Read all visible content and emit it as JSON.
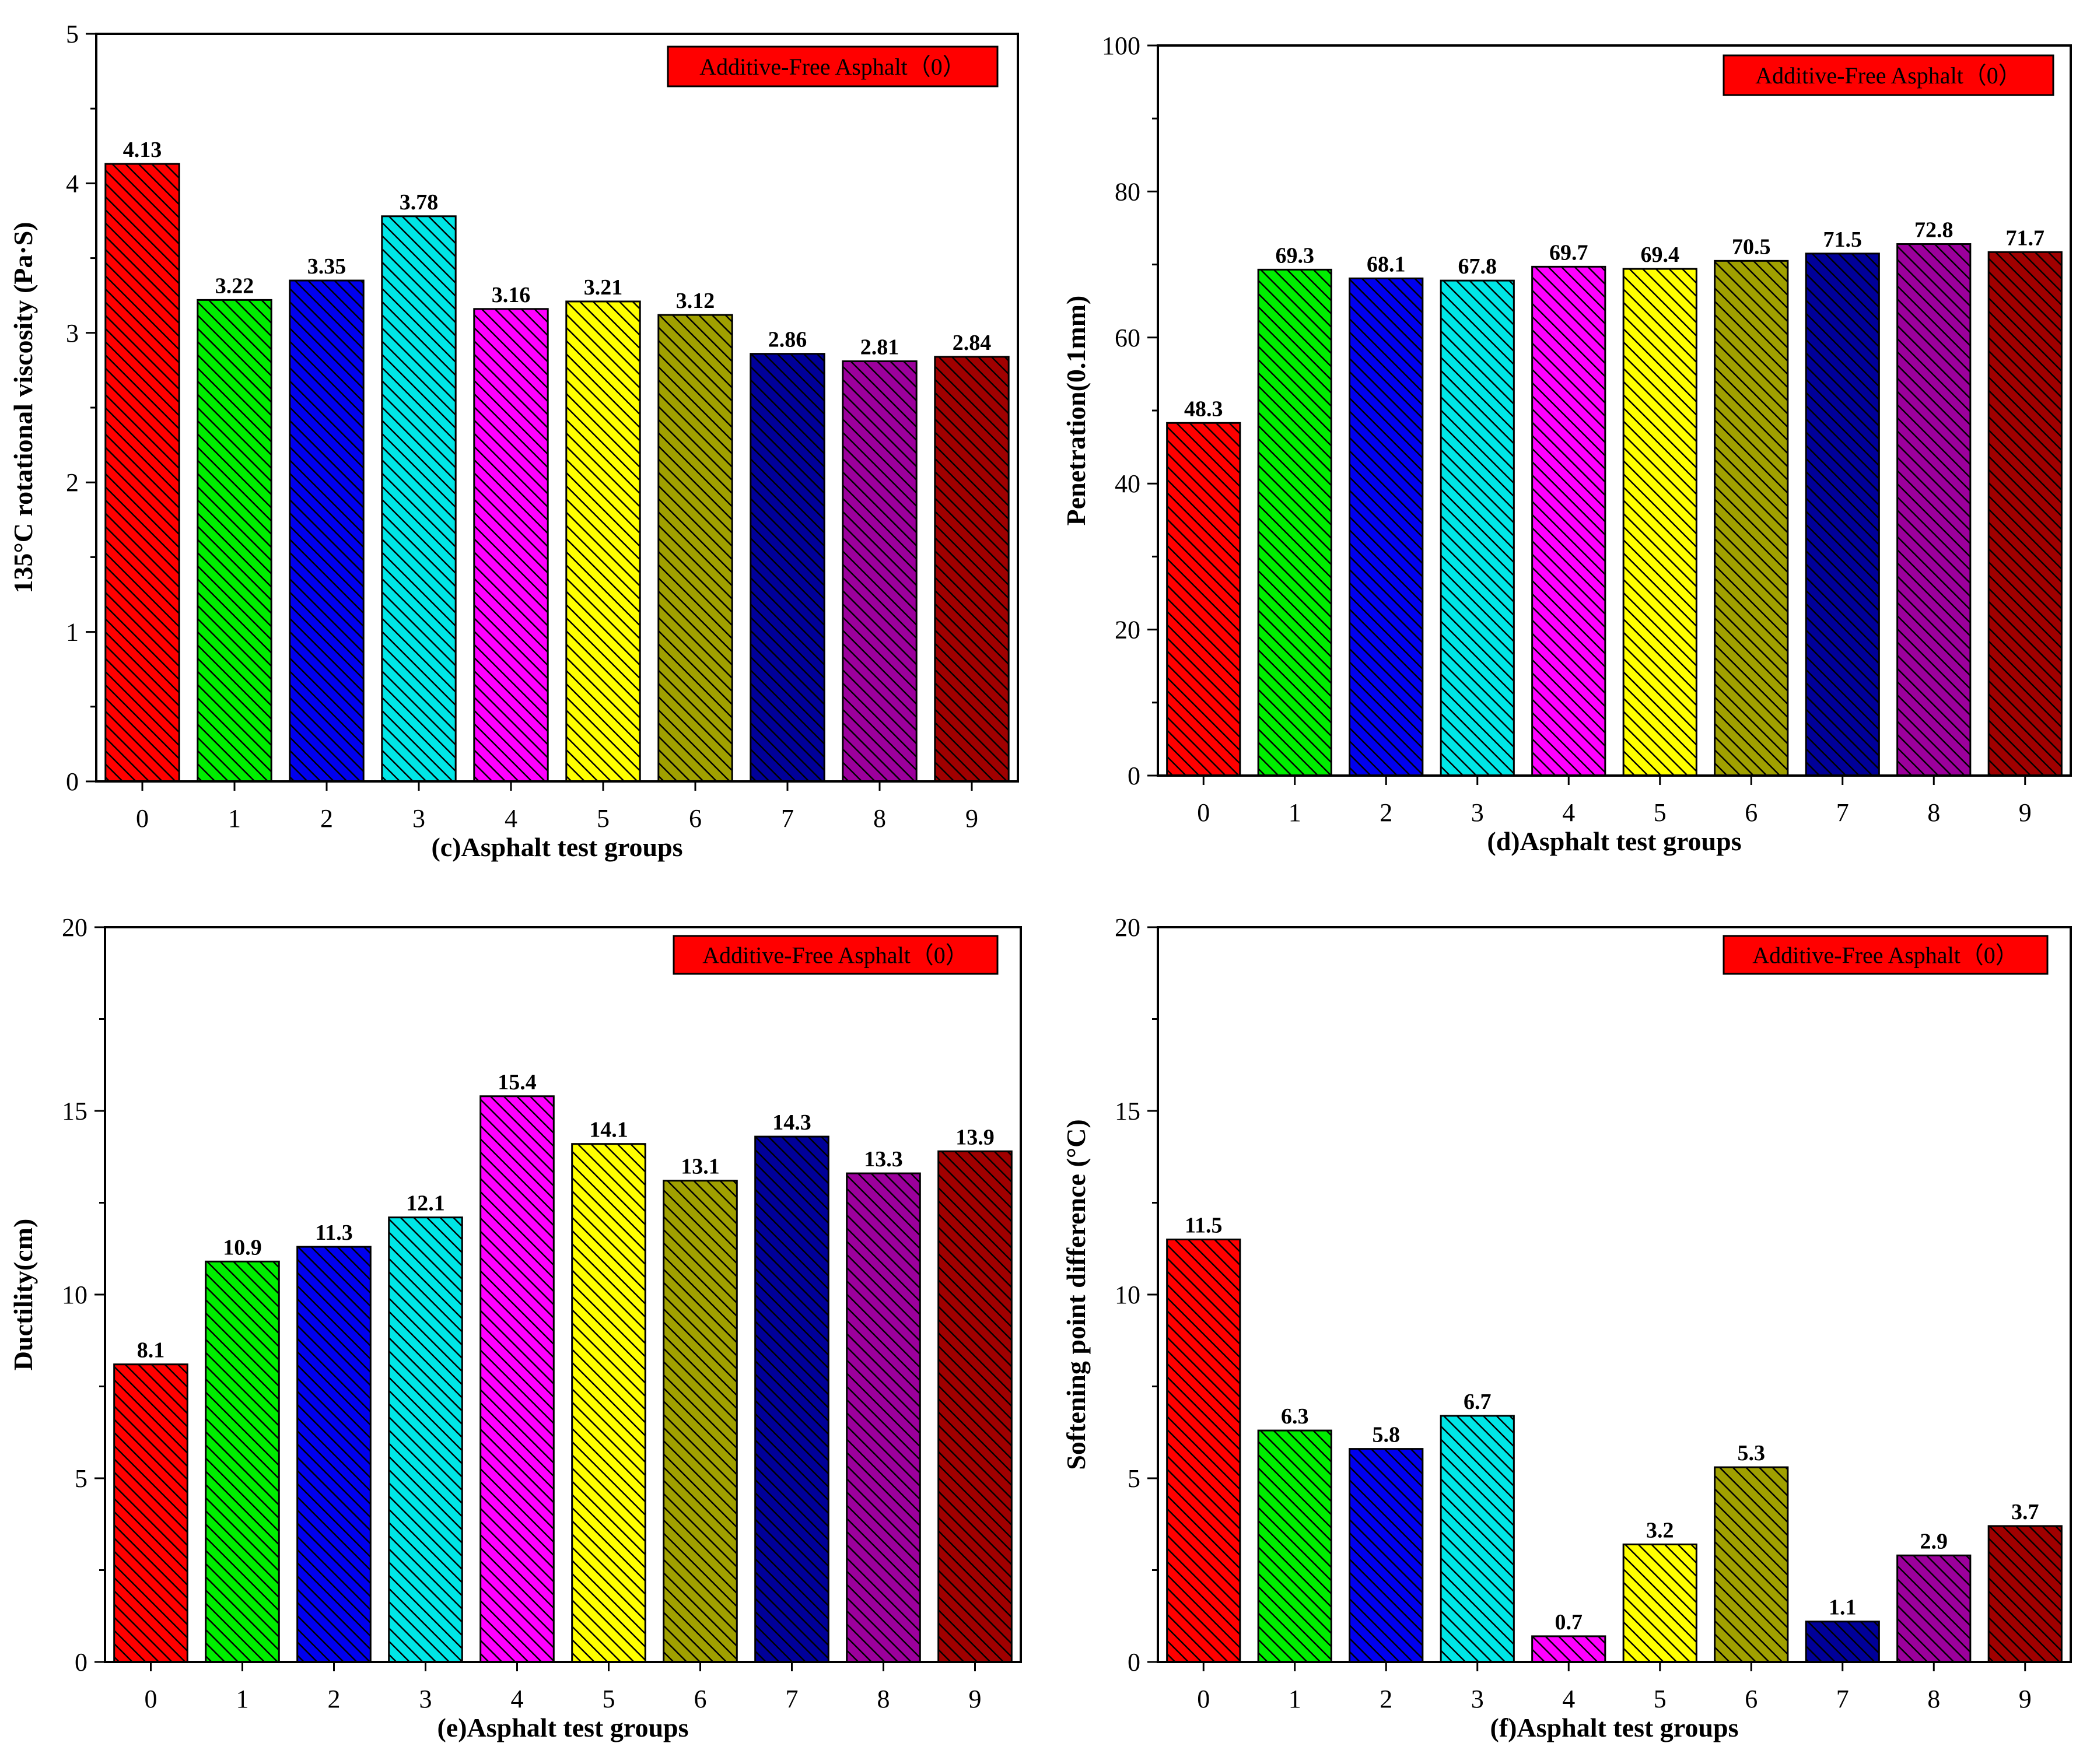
{
  "palette": [
    "#ff0000",
    "#00ee00",
    "#0000ee",
    "#00e6e6",
    "#ff00ff",
    "#ffff00",
    "#a0a000",
    "#000099",
    "#9c009c",
    "#a00000"
  ],
  "chart_data": [
    {
      "type": "bar",
      "xlabel": "(c)Asphalt test groups",
      "ylabel": "135°C rotational viscosity (Pa·S)",
      "legend": "Additive-Free Asphalt（0）",
      "legend_position": "top-right",
      "categories": [
        "0",
        "1",
        "2",
        "3",
        "4",
        "5",
        "6",
        "7",
        "8",
        "9"
      ],
      "values": [
        4.13,
        3.22,
        3.35,
        3.78,
        3.16,
        3.21,
        3.12,
        2.86,
        2.81,
        2.84
      ],
      "value_labels": [
        "4.13",
        "3.22",
        "3.35",
        "3.78",
        "3.16",
        "3.21",
        "3.12",
        "2.86",
        "2.81",
        "2.84"
      ],
      "ylim": [
        0,
        5
      ],
      "yticks": [
        "0",
        "1",
        "2",
        "3",
        "4",
        "5"
      ],
      "grid": false
    },
    {
      "type": "bar",
      "xlabel": "(d)Asphalt test groups",
      "ylabel": "Penetration(0.1mm)",
      "legend": "Additive-Free Asphalt（0）",
      "legend_position": "top-right",
      "categories": [
        "0",
        "1",
        "2",
        "3",
        "4",
        "5",
        "6",
        "7",
        "8",
        "9"
      ],
      "values": [
        48.3,
        69.3,
        68.1,
        67.8,
        69.7,
        69.4,
        70.5,
        71.5,
        72.8,
        71.7
      ],
      "value_labels": [
        "48.3",
        "69.3",
        "68.1",
        "67.8",
        "69.7",
        "69.4",
        "70.5",
        "71.5",
        "72.8",
        "71.7"
      ],
      "ylim": [
        0,
        100
      ],
      "yticks": [
        "0",
        "20",
        "40",
        "60",
        "80",
        "100"
      ],
      "grid": false
    },
    {
      "type": "bar",
      "xlabel": "(e)Asphalt test groups",
      "ylabel": "Ductility(cm)",
      "legend": "Additive-Free Asphalt（0）",
      "legend_position": "top-right",
      "categories": [
        "0",
        "1",
        "2",
        "3",
        "4",
        "5",
        "6",
        "7",
        "8",
        "9"
      ],
      "values": [
        8.1,
        10.9,
        11.3,
        12.1,
        15.4,
        14.1,
        13.1,
        14.3,
        13.3,
        13.9
      ],
      "value_labels": [
        "8.1",
        "10.9",
        "11.3",
        "12.1",
        "15.4",
        "14.1",
        "13.1",
        "14.3",
        "13.3",
        "13.9"
      ],
      "ylim": [
        0,
        20
      ],
      "yticks": [
        "0",
        "5",
        "10",
        "15",
        "20"
      ],
      "grid": false
    },
    {
      "type": "bar",
      "xlabel": "(f)Asphalt test groups",
      "ylabel": "Softening point difference (°C)",
      "legend": "Additive-Free Asphalt（0）",
      "legend_position": "top-right",
      "categories": [
        "0",
        "1",
        "2",
        "3",
        "4",
        "5",
        "6",
        "7",
        "8",
        "9"
      ],
      "values": [
        11.5,
        6.3,
        5.8,
        6.7,
        0.7,
        3.2,
        5.3,
        1.1,
        2.9,
        3.7
      ],
      "value_labels": [
        "11.5",
        "6.3",
        "5.8",
        "6.7",
        "0.7",
        "3.2",
        "5.3",
        "1.1",
        "2.9",
        "3.7"
      ],
      "ylim": [
        0,
        20
      ],
      "yticks": [
        "0",
        "5",
        "10",
        "15",
        "20"
      ],
      "grid": false
    }
  ]
}
